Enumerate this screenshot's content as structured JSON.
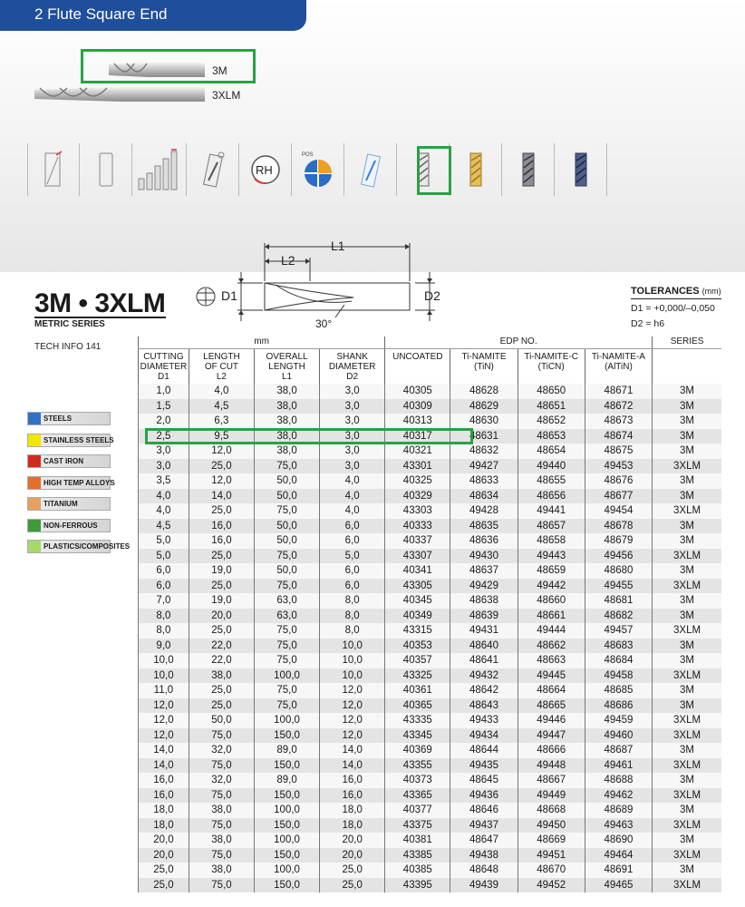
{
  "header": {
    "title": "2 Flute Square End"
  },
  "tools": [
    {
      "label": "3M"
    },
    {
      "label": "3XLM"
    }
  ],
  "icons": [
    "twist-icon",
    "cylinder-shank-icon",
    "length-bars-icon",
    "spiral-icon",
    "rh-rotation-icon",
    "pos-globe-icon",
    "blue-flute-icon",
    "uncoated-flute-icon",
    "tin-flute-icon",
    "ticn-flute-icon",
    "altin-flute-icon"
  ],
  "icon_labels": {
    "rh": "RH",
    "pos": "POS"
  },
  "diagram": {
    "l1": "L1",
    "l2": "L2",
    "d1": "D1",
    "d2": "D2",
    "angle": "30°"
  },
  "title": {
    "main": "3M • 3XLM",
    "sub": "METRIC SERIES",
    "techinfo": "TECH INFO 141"
  },
  "tolerances": {
    "title": "TOLERANCES",
    "unit": "(mm)",
    "d1_label": "D1",
    "d1_value": "= +0,000/–0,050",
    "d2_label": "D2",
    "d2_value": "= h6"
  },
  "materials": [
    {
      "label": "STEELS",
      "color": "#2f73c4"
    },
    {
      "label": "STAINLESS STEELS",
      "color": "#f2e600"
    },
    {
      "label": "CAST IRON",
      "color": "#d42a1e"
    },
    {
      "label": "HIGH TEMP ALLOYS",
      "color": "#e3702a"
    },
    {
      "label": "TITANIUM",
      "color": "#e8a060"
    },
    {
      "label": "NON-FERROUS",
      "color": "#3f9a3a"
    },
    {
      "label": "PLASTICS/COMPOSITES",
      "color": "#a6d86b"
    }
  ],
  "table": {
    "group_mm": "mm",
    "group_edp": "EDP NO.",
    "group_series": "SERIES",
    "columns": [
      {
        "l1": "CUTTING",
        "l2": "DIAMETER",
        "l3": "D1"
      },
      {
        "l1": "LENGTH",
        "l2": "OF CUT",
        "l3": "L2"
      },
      {
        "l1": "OVERALL",
        "l2": "LENGTH",
        "l3": "L1"
      },
      {
        "l1": "SHANK",
        "l2": "DIAMETER",
        "l3": "D2"
      },
      {
        "l1": "UNCOATED",
        "l2": "",
        "l3": ""
      },
      {
        "l1": "Ti-NAMITE",
        "l2": "(TiN)",
        "l3": ""
      },
      {
        "l1": "Ti-NAMITE-C",
        "l2": "(TiCN)",
        "l3": ""
      },
      {
        "l1": "Ti-NAMITE-A",
        "l2": "(AlTiN)",
        "l3": ""
      },
      {
        "l1": "",
        "l2": "",
        "l3": ""
      }
    ],
    "rows": [
      [
        "1,0",
        "4,0",
        "38,0",
        "3,0",
        "40305",
        "48628",
        "48650",
        "48671",
        "3M"
      ],
      [
        "1,5",
        "4,5",
        "38,0",
        "3,0",
        "40309",
        "48629",
        "48651",
        "48672",
        "3M"
      ],
      [
        "2,0",
        "6,3",
        "38,0",
        "3,0",
        "40313",
        "48630",
        "48652",
        "48673",
        "3M"
      ],
      [
        "2,5",
        "9,5",
        "38,0",
        "3,0",
        "40317",
        "48631",
        "48653",
        "48674",
        "3M"
      ],
      [
        "3,0",
        "12,0",
        "38,0",
        "3,0",
        "40321",
        "48632",
        "48654",
        "48675",
        "3M"
      ],
      [
        "3,0",
        "25,0",
        "75,0",
        "3,0",
        "43301",
        "49427",
        "49440",
        "49453",
        "3XLM"
      ],
      [
        "3,5",
        "12,0",
        "50,0",
        "4,0",
        "40325",
        "48633",
        "48655",
        "48676",
        "3M"
      ],
      [
        "4,0",
        "14,0",
        "50,0",
        "4,0",
        "40329",
        "48634",
        "48656",
        "48677",
        "3M"
      ],
      [
        "4,0",
        "25,0",
        "75,0",
        "4,0",
        "43303",
        "49428",
        "49441",
        "49454",
        "3XLM"
      ],
      [
        "4,5",
        "16,0",
        "50,0",
        "6,0",
        "40333",
        "48635",
        "48657",
        "48678",
        "3M"
      ],
      [
        "5,0",
        "16,0",
        "50,0",
        "6,0",
        "40337",
        "48636",
        "48658",
        "48679",
        "3M"
      ],
      [
        "5,0",
        "25,0",
        "75,0",
        "5,0",
        "43307",
        "49430",
        "49443",
        "49456",
        "3XLM"
      ],
      [
        "6,0",
        "19,0",
        "50,0",
        "6,0",
        "40341",
        "48637",
        "48659",
        "48680",
        "3M"
      ],
      [
        "6,0",
        "25,0",
        "75,0",
        "6,0",
        "43305",
        "49429",
        "49442",
        "49455",
        "3XLM"
      ],
      [
        "7,0",
        "19,0",
        "63,0",
        "8,0",
        "40345",
        "48638",
        "48660",
        "48681",
        "3M"
      ],
      [
        "8,0",
        "20,0",
        "63,0",
        "8,0",
        "40349",
        "48639",
        "48661",
        "48682",
        "3M"
      ],
      [
        "8,0",
        "25,0",
        "75,0",
        "8,0",
        "43315",
        "49431",
        "49444",
        "49457",
        "3XLM"
      ],
      [
        "9,0",
        "22,0",
        "75,0",
        "10,0",
        "40353",
        "48640",
        "48662",
        "48683",
        "3M"
      ],
      [
        "10,0",
        "22,0",
        "75,0",
        "10,0",
        "40357",
        "48641",
        "48663",
        "48684",
        "3M"
      ],
      [
        "10,0",
        "38,0",
        "100,0",
        "10,0",
        "43325",
        "49432",
        "49445",
        "49458",
        "3XLM"
      ],
      [
        "11,0",
        "25,0",
        "75,0",
        "12,0",
        "40361",
        "48642",
        "48664",
        "48685",
        "3M"
      ],
      [
        "12,0",
        "25,0",
        "75,0",
        "12,0",
        "40365",
        "48643",
        "48665",
        "48686",
        "3M"
      ],
      [
        "12,0",
        "50,0",
        "100,0",
        "12,0",
        "43335",
        "49433",
        "49446",
        "49459",
        "3XLM"
      ],
      [
        "12,0",
        "75,0",
        "150,0",
        "12,0",
        "43345",
        "49434",
        "49447",
        "49460",
        "3XLM"
      ],
      [
        "14,0",
        "32,0",
        "89,0",
        "14,0",
        "40369",
        "48644",
        "48666",
        "48687",
        "3M"
      ],
      [
        "14,0",
        "75,0",
        "150,0",
        "14,0",
        "43355",
        "49435",
        "49448",
        "49461",
        "3XLM"
      ],
      [
        "16,0",
        "32,0",
        "89,0",
        "16,0",
        "40373",
        "48645",
        "48667",
        "48688",
        "3M"
      ],
      [
        "16,0",
        "75,0",
        "150,0",
        "16,0",
        "43365",
        "49436",
        "49449",
        "49462",
        "3XLM"
      ],
      [
        "18,0",
        "38,0",
        "100,0",
        "18,0",
        "40377",
        "48646",
        "48668",
        "48689",
        "3M"
      ],
      [
        "18,0",
        "75,0",
        "150,0",
        "18,0",
        "43375",
        "49437",
        "49450",
        "49463",
        "3XLM"
      ],
      [
        "20,0",
        "38,0",
        "100,0",
        "20,0",
        "40381",
        "48647",
        "48669",
        "48690",
        "3M"
      ],
      [
        "20,0",
        "75,0",
        "150,0",
        "20,0",
        "43385",
        "49438",
        "49451",
        "49464",
        "3XLM"
      ],
      [
        "25,0",
        "38,0",
        "100,0",
        "25,0",
        "40385",
        "48648",
        "48670",
        "48691",
        "3M"
      ],
      [
        "25,0",
        "75,0",
        "150,0",
        "25,0",
        "43395",
        "49439",
        "49452",
        "49465",
        "3XLM"
      ]
    ]
  }
}
